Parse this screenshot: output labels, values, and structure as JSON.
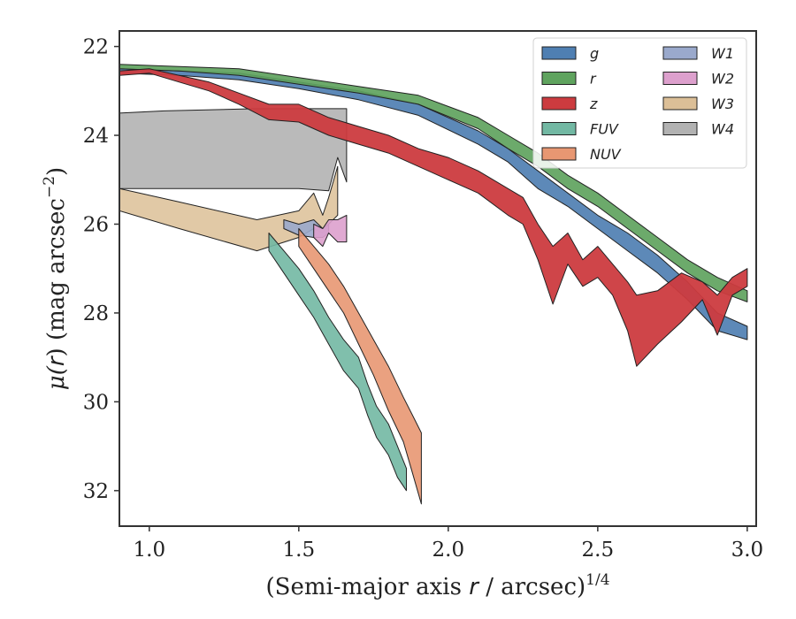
{
  "chart_data": {
    "type": "area",
    "xlabel": "(Semi-major axis r / arcsec)",
    "xlabel_parts": {
      "prefix": "(Semi-major axis ",
      "var": "r",
      "suffix": " / arcsec)",
      "sup": "1/4"
    },
    "ylabel_parts": {
      "mu": "μ(",
      "var": "r",
      "mid": ") (mag arcsec",
      "sup": "−2",
      "end": ")"
    },
    "xlim": [
      0.9,
      3.03
    ],
    "ylim": [
      32.8,
      21.65
    ],
    "xticks": [
      1.0,
      1.5,
      2.0,
      2.5,
      3.0
    ],
    "xtick_labels": [
      "1.0",
      "1.5",
      "2.0",
      "2.5",
      "3.0"
    ],
    "yticks": [
      22,
      24,
      26,
      28,
      30,
      32
    ],
    "ytick_labels": [
      "22",
      "24",
      "26",
      "28",
      "30",
      "32"
    ],
    "legend_position": "top-right",
    "series": [
      {
        "name": "W3",
        "color": "#dcbf97",
        "alpha": 0.85,
        "x": [
          0.9,
          1.1,
          1.36,
          1.5,
          1.55,
          1.58,
          1.6,
          1.63
        ],
        "y_upper": [
          25.2,
          25.5,
          25.9,
          25.7,
          25.3,
          25.8,
          25.4,
          24.7
        ],
        "y_lower": [
          25.7,
          26.1,
          26.6,
          26.3,
          26.1,
          26.2,
          26.0,
          25.8
        ]
      },
      {
        "name": "W4",
        "color": "#b2b2b2",
        "alpha": 0.9,
        "x": [
          0.9,
          1.05,
          1.36,
          1.5,
          1.6,
          1.63,
          1.66
        ],
        "y_upper": [
          23.5,
          23.45,
          23.4,
          23.4,
          23.4,
          23.4,
          23.4
        ],
        "y_lower": [
          25.2,
          25.2,
          25.2,
          25.2,
          25.25,
          24.5,
          25.05
        ]
      },
      {
        "name": "W1",
        "color": "#9aa9cc",
        "alpha": 0.9,
        "x": [
          1.45,
          1.5,
          1.55,
          1.58,
          1.6
        ],
        "y_upper": [
          25.9,
          26.0,
          25.9,
          26.1,
          26.0
        ],
        "y_lower": [
          26.1,
          26.25,
          26.3,
          26.3,
          26.2
        ]
      },
      {
        "name": "W2",
        "color": "#dda0cd",
        "alpha": 0.9,
        "x": [
          1.55,
          1.58,
          1.6,
          1.63,
          1.66
        ],
        "y_upper": [
          26.0,
          26.1,
          25.9,
          25.9,
          25.8
        ],
        "y_lower": [
          26.3,
          26.5,
          26.2,
          26.4,
          26.4
        ]
      },
      {
        "name": "FUV",
        "color": "#72b8a3",
        "alpha": 0.9,
        "x": [
          1.4,
          1.45,
          1.5,
          1.55,
          1.6,
          1.65,
          1.7,
          1.73,
          1.76,
          1.8,
          1.83,
          1.86
        ],
        "y_upper": [
          26.2,
          26.6,
          27.0,
          27.5,
          28.1,
          28.6,
          29.0,
          29.6,
          30.1,
          30.5,
          31.0,
          31.5
        ],
        "y_lower": [
          26.6,
          27.1,
          27.6,
          28.1,
          28.7,
          29.3,
          29.7,
          30.3,
          30.8,
          31.2,
          31.7,
          32.0
        ]
      },
      {
        "name": "NUV",
        "color": "#e89772",
        "alpha": 0.9,
        "x": [
          1.5,
          1.55,
          1.6,
          1.65,
          1.7,
          1.75,
          1.8,
          1.85,
          1.88,
          1.91
        ],
        "y_upper": [
          26.1,
          26.5,
          26.9,
          27.4,
          28.0,
          28.6,
          29.2,
          29.9,
          30.3,
          30.7
        ],
        "y_lower": [
          26.5,
          27.0,
          27.5,
          28.0,
          28.7,
          29.4,
          30.2,
          30.9,
          31.6,
          32.3
        ]
      },
      {
        "name": "g",
        "color": "#4f7fb2",
        "alpha": 0.92,
        "x": [
          0.9,
          1.1,
          1.3,
          1.5,
          1.7,
          1.9,
          2.1,
          2.2,
          2.3,
          2.4,
          2.5,
          2.6,
          2.7,
          2.8,
          2.9,
          3.0
        ],
        "y_upper": [
          22.5,
          22.55,
          22.6,
          22.8,
          23.0,
          23.3,
          23.9,
          24.3,
          24.8,
          25.3,
          25.8,
          26.2,
          26.7,
          27.3,
          28.0,
          28.3
        ],
        "y_lower": [
          22.6,
          22.65,
          22.75,
          22.95,
          23.2,
          23.55,
          24.2,
          24.6,
          25.2,
          25.6,
          26.1,
          26.6,
          27.1,
          27.7,
          28.4,
          28.6
        ]
      },
      {
        "name": "r",
        "color": "#5fa35e",
        "alpha": 0.92,
        "x": [
          0.9,
          1.1,
          1.3,
          1.5,
          1.7,
          1.9,
          2.1,
          2.2,
          2.3,
          2.4,
          2.5,
          2.6,
          2.7,
          2.8,
          2.9,
          3.0
        ],
        "y_upper": [
          22.4,
          22.45,
          22.5,
          22.7,
          22.9,
          23.1,
          23.6,
          24.0,
          24.4,
          24.9,
          25.3,
          25.8,
          26.3,
          26.8,
          27.2,
          27.5
        ],
        "y_lower": [
          22.5,
          22.55,
          22.65,
          22.85,
          23.05,
          23.3,
          23.85,
          24.3,
          24.7,
          25.2,
          25.6,
          26.1,
          26.6,
          27.1,
          27.5,
          27.75
        ]
      },
      {
        "name": "z",
        "color": "#cc3b3f",
        "alpha": 0.95,
        "x": [
          0.9,
          1.0,
          1.1,
          1.2,
          1.3,
          1.4,
          1.5,
          1.6,
          1.7,
          1.8,
          1.9,
          2.0,
          2.1,
          2.2,
          2.25,
          2.3,
          2.35,
          2.4,
          2.45,
          2.5,
          2.55,
          2.6,
          2.63,
          2.7,
          2.78,
          2.85,
          2.9,
          2.95,
          3.0
        ],
        "y_upper": [
          22.55,
          22.5,
          22.65,
          22.8,
          23.05,
          23.3,
          23.3,
          23.6,
          23.8,
          24.0,
          24.3,
          24.5,
          24.8,
          25.2,
          25.4,
          26.0,
          26.5,
          26.2,
          26.8,
          26.5,
          26.9,
          27.3,
          27.6,
          27.5,
          27.1,
          27.3,
          27.6,
          27.2,
          27.0
        ],
        "y_lower": [
          22.65,
          22.6,
          22.8,
          23.0,
          23.3,
          23.65,
          23.7,
          24.0,
          24.2,
          24.4,
          24.7,
          25.0,
          25.3,
          25.8,
          26.0,
          26.8,
          27.8,
          26.9,
          27.4,
          27.2,
          27.6,
          28.4,
          29.2,
          28.7,
          28.2,
          27.7,
          28.5,
          27.6,
          27.4
        ]
      }
    ],
    "legend": [
      {
        "label": "g",
        "color": "#4f7fb2"
      },
      {
        "label": "r",
        "color": "#5fa35e"
      },
      {
        "label": "z",
        "color": "#cc3b3f"
      },
      {
        "label": "FUV",
        "color": "#72b8a3"
      },
      {
        "label": "NUV",
        "color": "#e89772"
      },
      {
        "label": "W1",
        "color": "#9aa9cc"
      },
      {
        "label": "W2",
        "color": "#dda0cd"
      },
      {
        "label": "W3",
        "color": "#dcbf97"
      },
      {
        "label": "W4",
        "color": "#b2b2b2"
      }
    ]
  }
}
